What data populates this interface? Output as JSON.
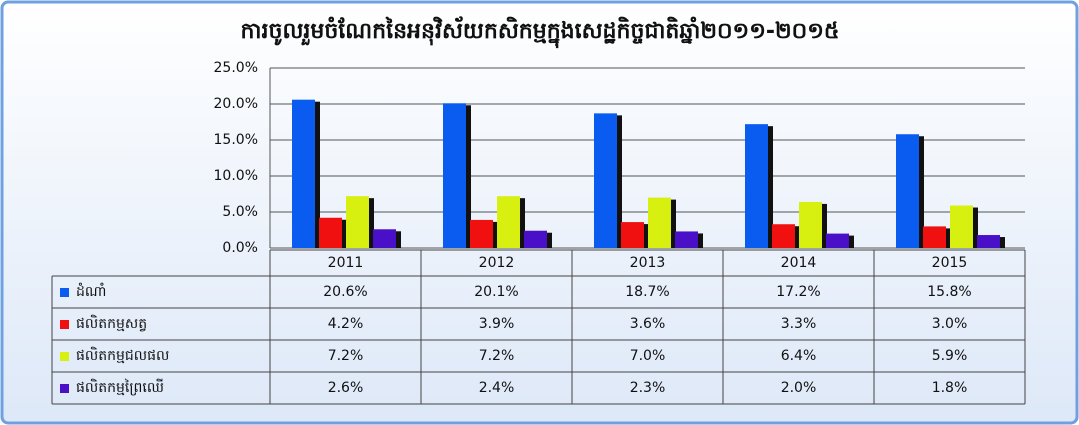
{
  "chart_data": {
    "type": "bar",
    "title": "ការចូលរួមចំណែកនៃអនុវិស័យកសិកម្មក្នុងសេដ្ឋកិច្ចជាតិឆ្នាំ២០១១-២០១៥",
    "categories": [
      "2011",
      "2012",
      "2013",
      "2014",
      "2015"
    ],
    "series": [
      {
        "name": "ដំណាំ",
        "color": "#0a5cf0",
        "values": [
          20.6,
          20.1,
          18.7,
          17.2,
          15.8
        ],
        "value_labels": [
          "20.6%",
          "20.1%",
          "18.7%",
          "17.2%",
          "15.8%"
        ]
      },
      {
        "name": "ផលិតកម្មសត្វ",
        "color": "#f01010",
        "values": [
          4.2,
          3.9,
          3.6,
          3.3,
          3.0
        ],
        "value_labels": [
          "4.2%",
          "3.9%",
          "3.6%",
          "3.3%",
          "3.0%"
        ]
      },
      {
        "name": "ផលិតកម្មជលផល",
        "color": "#d8f010",
        "values": [
          7.2,
          7.2,
          7.0,
          6.4,
          5.9
        ],
        "value_labels": [
          "7.2%",
          "7.2%",
          "7.0%",
          "6.4%",
          "5.9%"
        ]
      },
      {
        "name": "ផលិតកម្មព្រៃឈើ",
        "color": "#4a10c8",
        "values": [
          2.6,
          2.4,
          2.3,
          2.0,
          1.8
        ],
        "value_labels": [
          "2.6%",
          "2.4%",
          "2.3%",
          "2.0%",
          "1.8%"
        ]
      }
    ],
    "ylim": [
      0,
      25
    ],
    "yticks": [
      {
        "value": 0,
        "label": "0.0%"
      },
      {
        "value": 5,
        "label": "5.0%"
      },
      {
        "value": 10,
        "label": "10.0%"
      },
      {
        "value": 15,
        "label": "15.0%"
      },
      {
        "value": 20,
        "label": "20.0%"
      },
      {
        "value": 25,
        "label": "25.0%"
      }
    ],
    "grid": true
  }
}
